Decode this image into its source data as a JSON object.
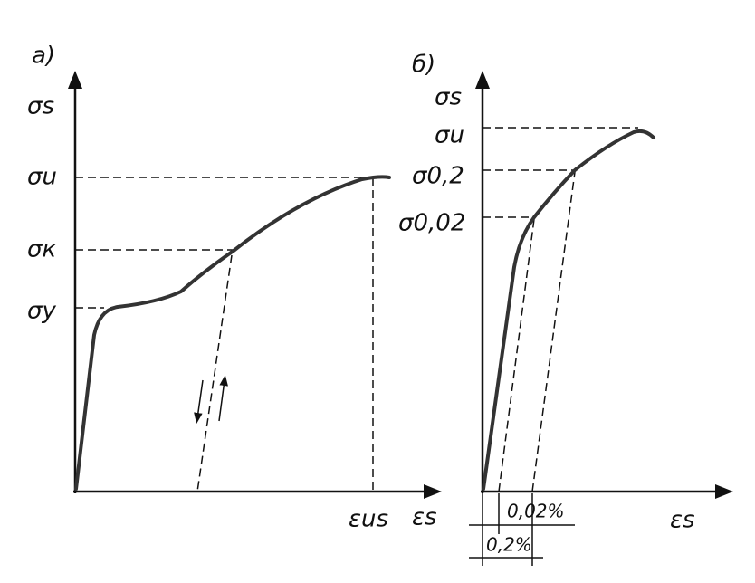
{
  "panel_a": {
    "label": "а)",
    "y_axis_label": "σs",
    "x_axis_label": "εs",
    "levels": [
      "σu",
      "σк",
      "σу"
    ],
    "x_marker": "εus"
  },
  "panel_b": {
    "label": "б)",
    "y_axis_label": "σs",
    "x_axis_label": "εs",
    "levels": [
      "σu",
      "σ0,2",
      "σ0,02"
    ],
    "offsets": [
      "0,02%",
      "0,2%"
    ]
  }
}
